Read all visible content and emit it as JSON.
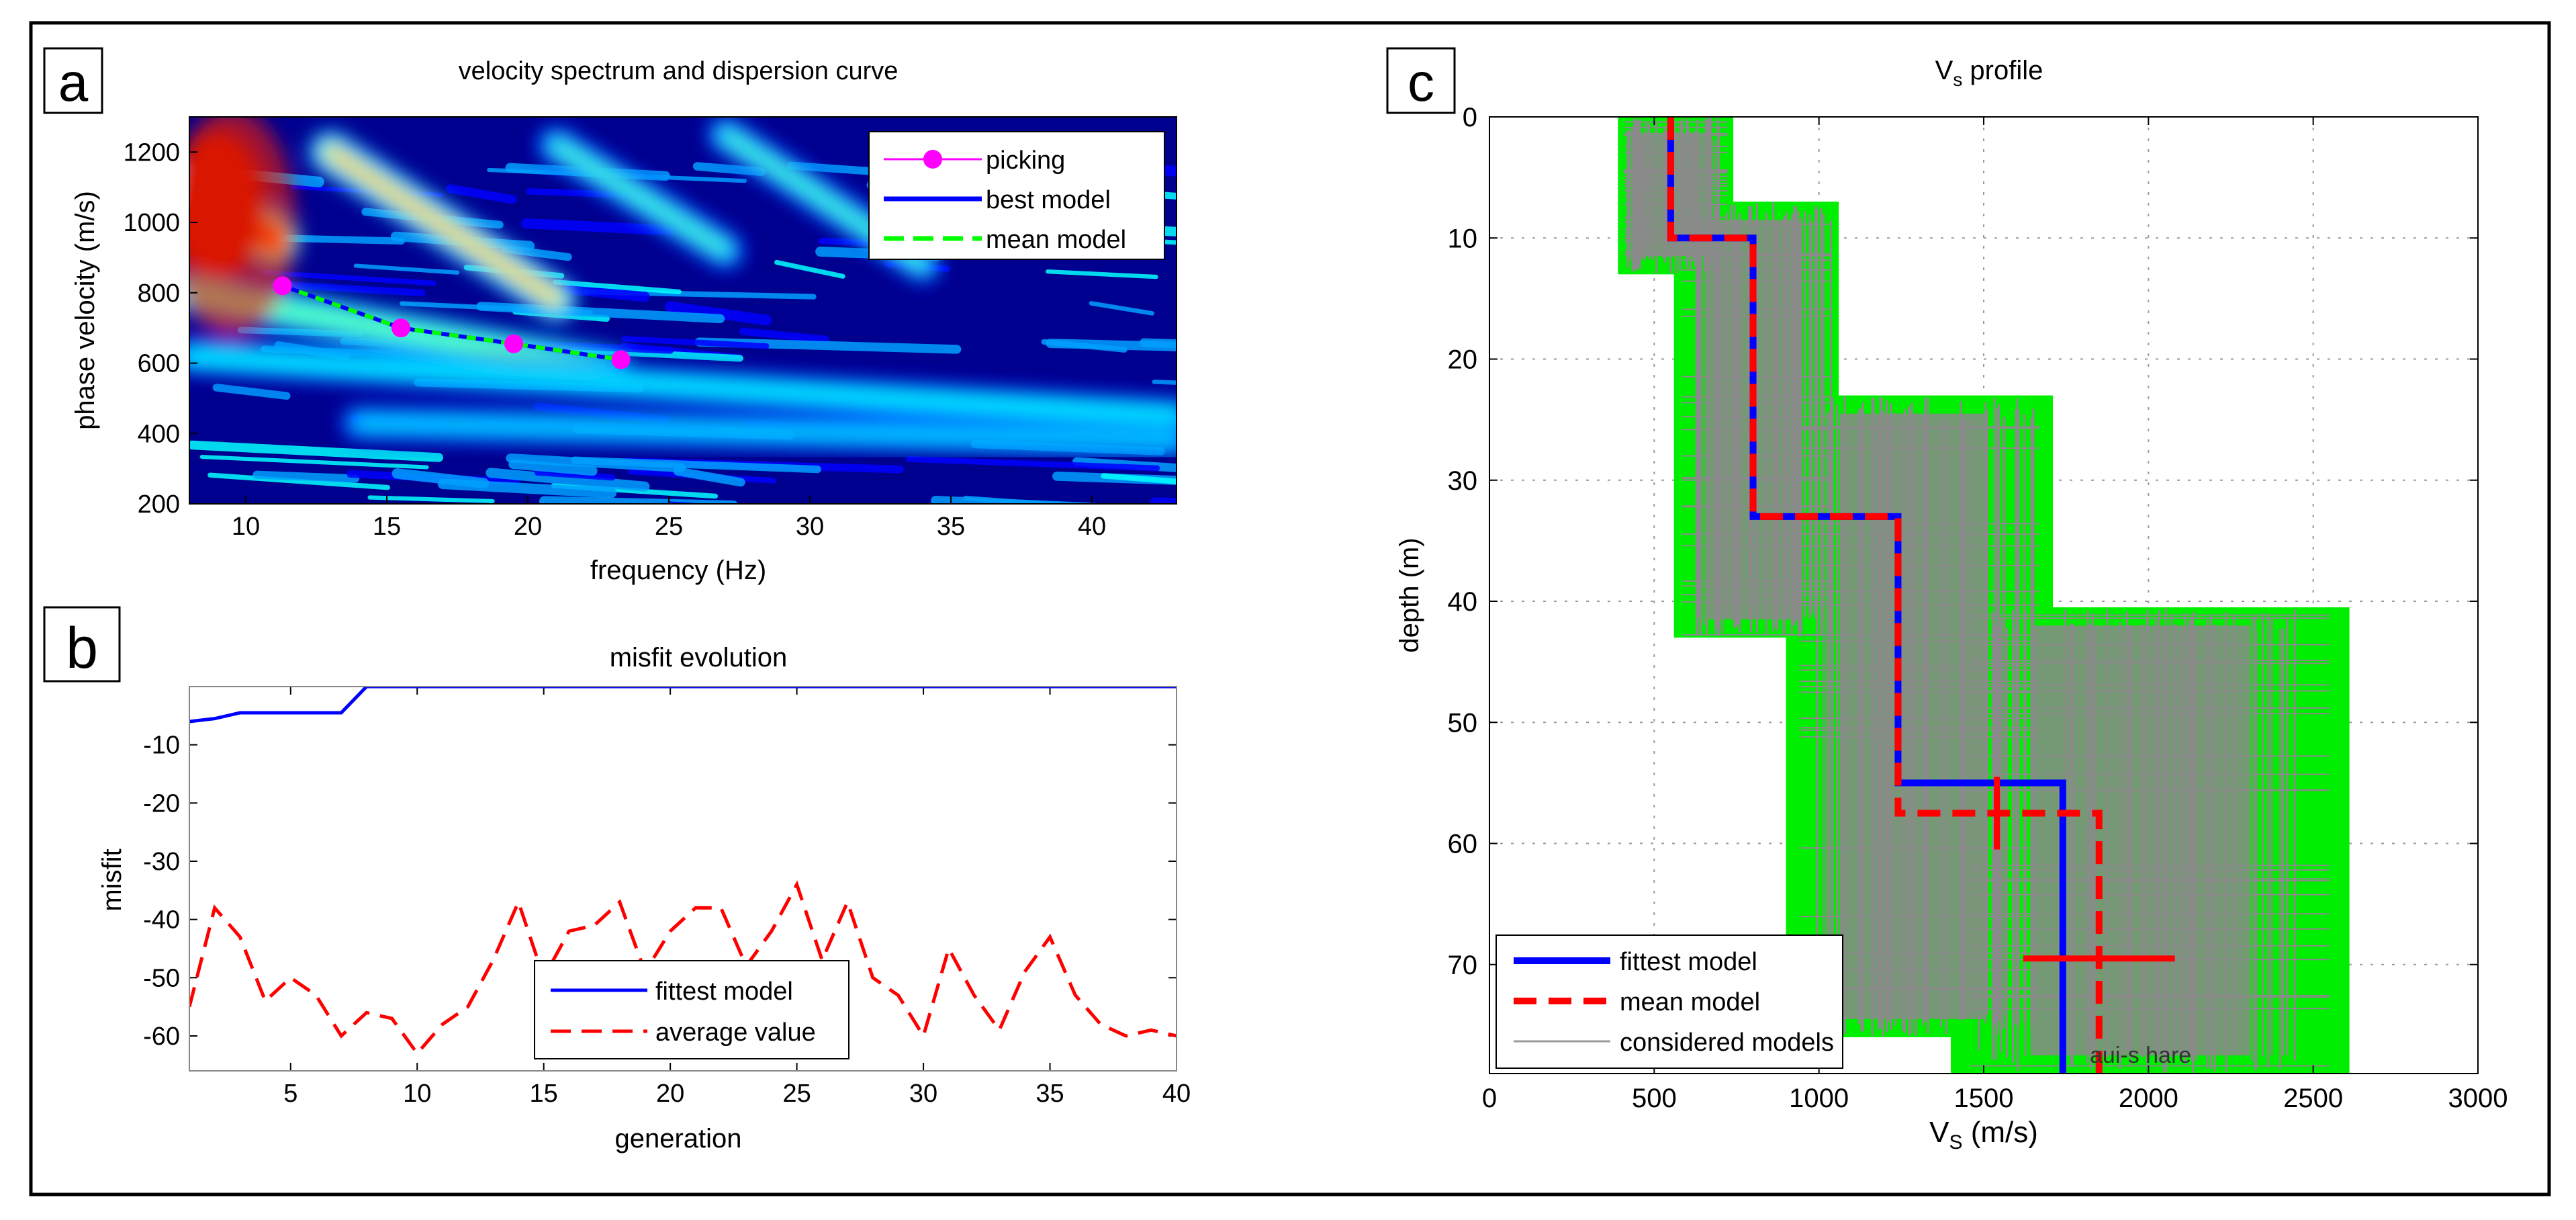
{
  "figure": {
    "panels": [
      {
        "id": "a",
        "letter": "a"
      },
      {
        "id": "b",
        "letter": "b"
      },
      {
        "id": "c",
        "letter": "c"
      }
    ]
  },
  "chart_data": [
    {
      "panel": "a",
      "type": "heatmap",
      "title": "velocity spectrum and dispersion curve",
      "xlabel": "frequency (Hz)",
      "ylabel": "phase velocity (m/s)",
      "xlim": [
        8,
        43
      ],
      "ylim": [
        200,
        1300
      ],
      "xticks": [
        10,
        15,
        20,
        25,
        30,
        35,
        40
      ],
      "yticks": [
        200,
        400,
        600,
        800,
        1000,
        1200
      ],
      "colormap": [
        "#00008f",
        "#0000ff",
        "#00a0ff",
        "#00ffff",
        "#60ff9f",
        "#ffff00",
        "#ff8000",
        "#ff0000",
        "#a00000"
      ],
      "spectrum_ridges": [
        {
          "f0": 8,
          "v0": 1100,
          "f1": 11,
          "v1": 950,
          "amp": 1.0
        },
        {
          "f0": 8,
          "v0": 800,
          "f1": 23,
          "v1": 580,
          "amp": 0.55
        },
        {
          "f0": 13,
          "v0": 1200,
          "f1": 21,
          "v1": 780,
          "amp": 0.7
        },
        {
          "f0": 21,
          "v0": 1220,
          "f1": 27,
          "v1": 920,
          "amp": 0.5
        },
        {
          "f0": 27,
          "v0": 1250,
          "f1": 34,
          "v1": 880,
          "amp": 0.45
        },
        {
          "f0": 8,
          "v0": 620,
          "f1": 43,
          "v1": 450,
          "amp": 0.4
        },
        {
          "f0": 14,
          "v0": 430,
          "f1": 43,
          "v1": 380,
          "amp": 0.35
        }
      ],
      "legend": {
        "position": "top-right",
        "entries": [
          "picking",
          "best model",
          "mean model"
        ]
      },
      "series": [
        {
          "name": "picking",
          "style": "markers",
          "color": "#ff00ff",
          "x": [
            11.3,
            15.5,
            19.5,
            23.3
          ],
          "y": [
            820,
            700,
            655,
            610
          ]
        },
        {
          "name": "best model",
          "style": "solid",
          "color": "#0000ff",
          "x": [
            11.3,
            15.5,
            19.5,
            23.3
          ],
          "y": [
            820,
            700,
            655,
            610
          ]
        },
        {
          "name": "mean model",
          "style": "dashed",
          "color": "#00ff00",
          "x": [
            11.3,
            15.5,
            19.5,
            23.3
          ],
          "y": [
            820,
            700,
            655,
            610
          ]
        }
      ]
    },
    {
      "panel": "b",
      "type": "line",
      "title": "misfit evolution",
      "xlabel": "generation",
      "ylabel": "misfit",
      "xlim": [
        1,
        40
      ],
      "ylim": [
        -66,
        0
      ],
      "xticks": [
        5,
        10,
        15,
        20,
        25,
        30,
        35,
        40
      ],
      "yticks": [
        -10,
        -20,
        -30,
        -40,
        -50,
        -60
      ],
      "legend": {
        "position": "bottom-center",
        "entries": [
          "fittest model",
          "average value"
        ]
      },
      "series": [
        {
          "name": "fittest model",
          "style": "solid",
          "color": "#0000ff",
          "x": [
            1,
            2,
            3,
            4,
            5,
            6,
            7,
            8,
            9,
            10,
            15,
            20,
            25,
            30,
            35,
            40
          ],
          "y": [
            -6,
            -5.5,
            -4.5,
            -4.5,
            -4.5,
            -4.5,
            -4.5,
            0,
            0,
            0,
            0,
            0,
            0,
            0,
            0,
            0
          ]
        },
        {
          "name": "average value",
          "style": "dashed",
          "color": "#ff0000",
          "x": [
            1,
            2,
            3,
            4,
            5,
            6,
            7,
            8,
            9,
            10,
            11,
            12,
            13,
            14,
            15,
            16,
            17,
            18,
            19,
            20,
            21,
            22,
            23,
            24,
            25,
            26,
            27,
            28,
            29,
            30,
            31,
            32,
            33,
            34,
            35,
            36,
            37,
            38,
            39,
            40
          ],
          "y": [
            -55,
            -38,
            -43,
            -54,
            -50,
            -53,
            -60,
            -56,
            -57,
            -63,
            -58,
            -55,
            -47,
            -37,
            -50,
            -42,
            -41,
            -37,
            -49,
            -42,
            -38,
            -38,
            -48,
            -42,
            -34,
            -47,
            -37,
            -50,
            -53,
            -60,
            -45,
            -53,
            -59,
            -49,
            -43,
            -53,
            -58,
            -60,
            -59,
            -60
          ]
        }
      ]
    },
    {
      "panel": "c",
      "type": "line",
      "title": "V",
      "title_sub": "s",
      "title_tail": " profile",
      "xlabel": "V",
      "xlabel_sub": "S",
      "xlabel_tail": " (m/s)",
      "ylabel": "depth (m)",
      "xlim": [
        0,
        3000
      ],
      "ylim": [
        0,
        79
      ],
      "y_reversed": true,
      "xticks": [
        0,
        500,
        1000,
        1500,
        2000,
        2500,
        3000
      ],
      "yticks": [
        0,
        10,
        20,
        30,
        40,
        50,
        60,
        70
      ],
      "legend": {
        "position": "bottom-left",
        "entries": [
          "fittest model",
          "mean model",
          "considered models"
        ]
      },
      "envelope_bands": [
        {
          "d0": 0,
          "d1": 13,
          "v0": 390,
          "v1": 740
        },
        {
          "d0": 7,
          "d1": 43,
          "v0": 560,
          "v1": 1060
        },
        {
          "d0": 23,
          "d1": 76,
          "v0": 900,
          "v1": 1710
        },
        {
          "d0": 40.5,
          "d1": 79,
          "v0": 1400,
          "v1": 2610
        }
      ],
      "series": [
        {
          "name": "fittest model",
          "style": "solid",
          "color": "#0000ff",
          "v": [
            550,
            550,
            800,
            800,
            1240,
            1240,
            1740,
            1740
          ],
          "d": [
            0,
            10,
            10,
            33,
            33,
            55,
            55,
            79
          ]
        },
        {
          "name": "mean model",
          "style": "dashed",
          "color": "#ff0000",
          "v": [
            550,
            550,
            800,
            800,
            1240,
            1240,
            1850,
            1850
          ],
          "d": [
            0,
            10,
            10,
            33,
            33,
            57.5,
            57.5,
            79
          ]
        },
        {
          "name": "considered models",
          "style": "thin",
          "color": "#808080"
        }
      ],
      "error_bars": [
        {
          "v": 1540,
          "d": 57.5,
          "v_err": 0,
          "d_err": 3
        },
        {
          "v": 1850,
          "d": 69.5,
          "v_err": 230,
          "d_err": 0
        }
      ],
      "annotation": "aui-s hare"
    }
  ]
}
